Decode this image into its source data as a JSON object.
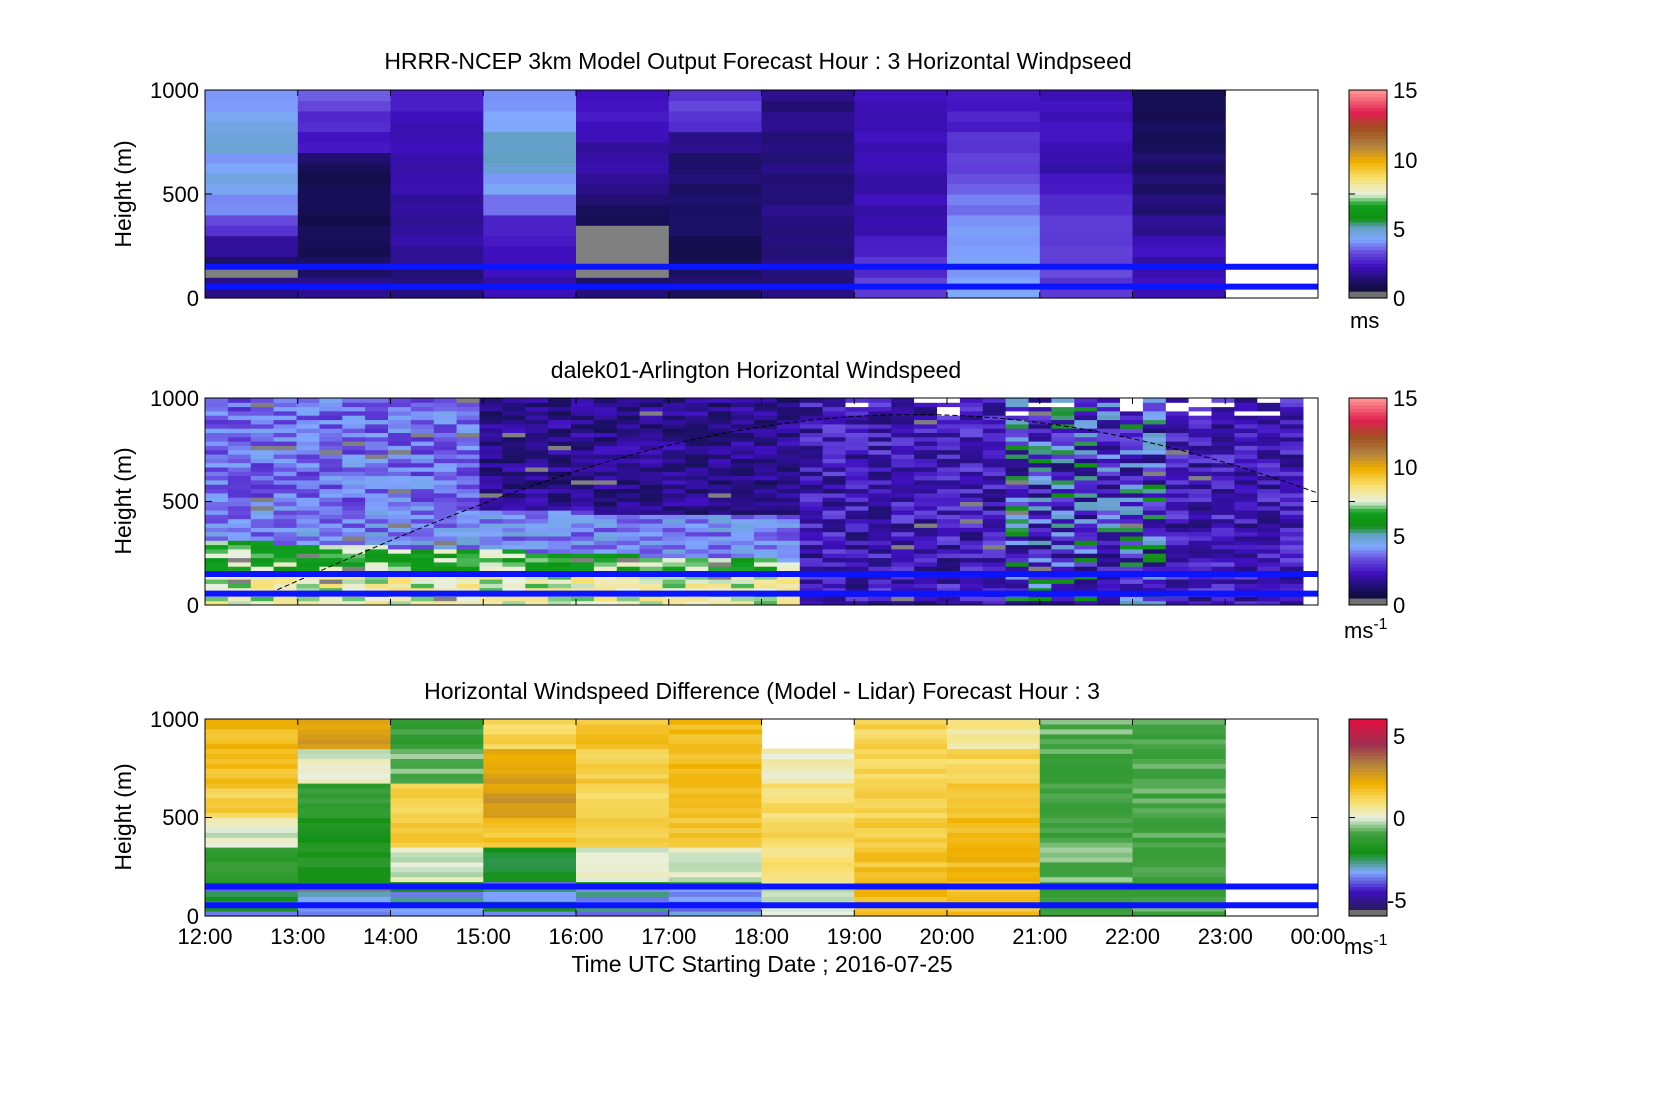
{
  "figure": {
    "xlabel": "Time UTC  Starting Date ; 2016-07-25",
    "xticks": [
      "12:00",
      "13:00",
      "14:00",
      "15:00",
      "16:00",
      "17:00",
      "18:00",
      "19:00",
      "20:00",
      "21:00",
      "22:00",
      "23:00",
      "00:00"
    ]
  },
  "colors": {
    "overlay_line": "#0a14ff",
    "missing": "#808080"
  },
  "chart_data": [
    {
      "type": "heatmap",
      "title": "HRRR-NCEP 3km Model Output   Forecast Hour : 3 Horizontal Windpseed",
      "ylabel": "Height (m)",
      "ylim": [
        0,
        1000
      ],
      "yticks": [
        "0",
        "500",
        "1000"
      ],
      "colorbar": {
        "label": "ms",
        "ticks": [
          "0",
          "5",
          "10",
          "15"
        ],
        "range": [
          0,
          15
        ]
      },
      "x_hours": [
        12,
        13,
        14,
        15,
        16,
        17,
        18,
        19,
        20,
        21,
        22,
        23
      ],
      "overlay_lines_height_m": [
        55,
        150
      ]
    },
    {
      "type": "heatmap",
      "title": "dalek01-Arlington  Horizontal Windspeed",
      "ylabel": "Height (m)",
      "ylim": [
        0,
        1000
      ],
      "yticks": [
        "0",
        "500",
        "1000"
      ],
      "colorbar": {
        "label": "ms",
        "label_sup": "-1",
        "ticks": [
          "0",
          "5",
          "10",
          "15"
        ],
        "range": [
          0,
          15
        ]
      },
      "overlay_lines_height_m": [
        55,
        150
      ]
    },
    {
      "type": "heatmap",
      "title": "Horizontal Windspeed Difference (Model - Lidar) Forecast Hour : 3",
      "ylabel": "Height (m)",
      "ylim": [
        0,
        1000
      ],
      "yticks": [
        "0",
        "500",
        "1000"
      ],
      "colorbar": {
        "label": "ms",
        "label_sup": "-1",
        "ticks": [
          "-5",
          "0",
          "5"
        ],
        "range": [
          -6,
          6
        ]
      },
      "overlay_lines_height_m": [
        55,
        150
      ]
    }
  ]
}
